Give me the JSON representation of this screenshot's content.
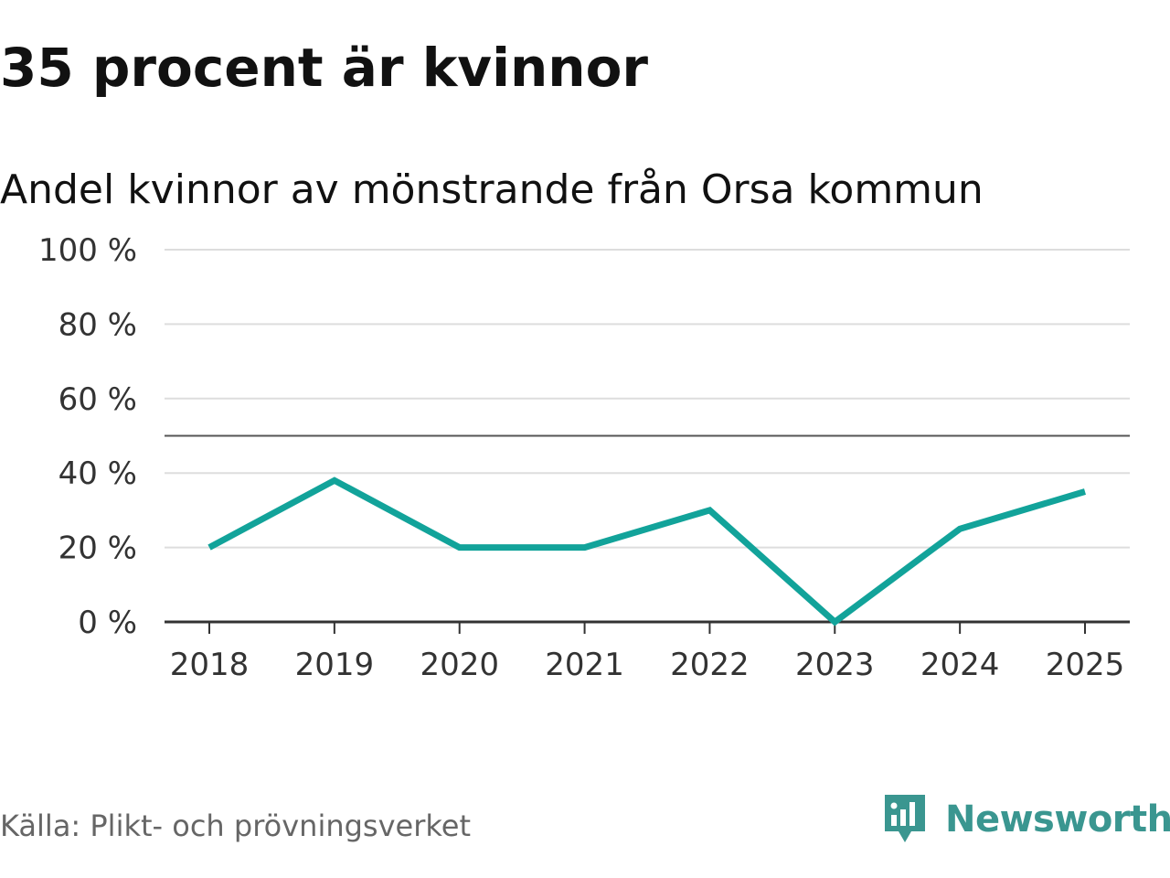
{
  "chart_data": {
    "type": "line",
    "title": "35 procent är kvinnor",
    "subtitle": "Andel kvinnor av mönstrande från Orsa kommun",
    "xlabel": "",
    "ylabel": "",
    "categories": [
      "2018",
      "2019",
      "2020",
      "2021",
      "2022",
      "2023",
      "2024",
      "2025"
    ],
    "series": [
      {
        "name": "Andel kvinnor",
        "values": [
          20,
          38,
          20,
          20,
          30,
          0,
          25,
          35
        ]
      }
    ],
    "ylim": [
      0,
      100
    ],
    "yticks": [
      0,
      20,
      40,
      60,
      80,
      100
    ],
    "ytick_labels": [
      "0 %",
      "20 %",
      "40 %",
      "60 %",
      "80 %",
      "100 %"
    ],
    "reference_line": 50,
    "grid": true,
    "line_color": "#12a39a"
  },
  "footer": {
    "source": "Källa: Plikt- och prövningsverket",
    "brand": "Newsworthy",
    "brand_icon": "newsworthy-logo-icon",
    "brand_color": "#3a9690"
  }
}
